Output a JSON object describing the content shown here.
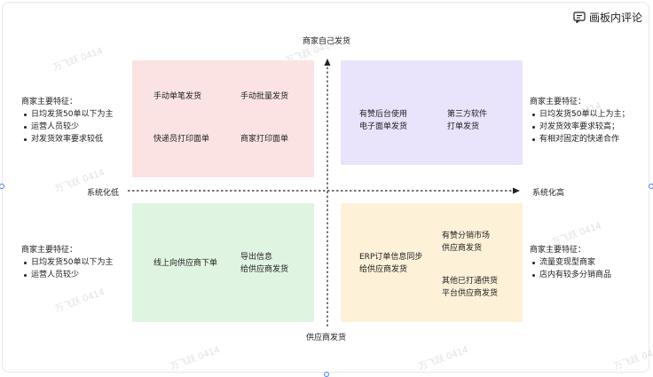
{
  "toolbar": {
    "comment_label": "画板内评论"
  },
  "axes": {
    "top": "商家自己发货",
    "bottom": "供应商发货",
    "left": "系统化低",
    "right": "系统化高"
  },
  "quadrants": {
    "top_left": {
      "items": [
        "手动单笔发货",
        "手动批量发货",
        "快递员打印面单",
        "商家打印面单"
      ]
    },
    "top_right": {
      "items": [
        "有赞后台使用",
        "电子面单发货",
        "第三方软件",
        "打单发货"
      ]
    },
    "bottom_left": {
      "items": [
        "线上向供应商下单",
        "导出信息",
        "给供应商发货"
      ]
    },
    "bottom_right": {
      "items": [
        "ERP订单信息同步",
        "给供应商发货",
        "有赞分销市场",
        "供应商发货",
        "其他已打通供货",
        "平台供应商发货"
      ]
    }
  },
  "features": {
    "top_left": {
      "title": "商家主要特征：",
      "bullets": [
        "日均发货50单以下为主",
        "运营人员较少",
        "对发货效率要求较低"
      ]
    },
    "top_right": {
      "title": "商家主要特征：",
      "bullets": [
        "日均发货50单以上为主；",
        "对发货效率要求较高；",
        "有相对固定的快递合作"
      ]
    },
    "bottom_left": {
      "title": "商家主要特征：",
      "bullets": [
        "日均发货50单以下为主",
        "运营人员较少"
      ]
    },
    "bottom_right": {
      "title": "商家主要特征：",
      "bullets": [
        "流量变现型商家",
        "店内有较多分销商品"
      ]
    }
  },
  "watermark": "万飞跃 0414",
  "colors": {
    "top_left": "#fbe3e3",
    "top_right": "#e9e3fb",
    "bottom_left": "#e0f4e2",
    "bottom_right": "#fdf1d8",
    "selection": "#4a7cf7"
  }
}
